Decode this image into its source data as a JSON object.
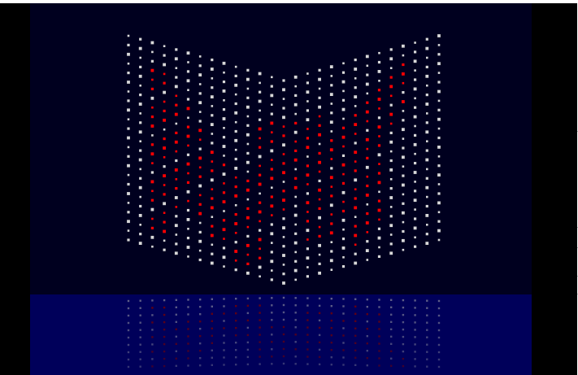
{
  "screen": {
    "title": "",
    "background_color": "#000000",
    "sky_color": "#00001f",
    "floor_color": "#00005a"
  },
  "grid": {
    "columns": 27,
    "rows": 23,
    "dot_color_light": "#d8d8d8",
    "dot_color_accent": "#ff0000",
    "reflection_dot_color": "#6f6f8f",
    "reflection_accent_color": "#7a0000"
  },
  "side_window": {
    "partial_glyph": "n",
    "partial_glyph_2": ""
  }
}
